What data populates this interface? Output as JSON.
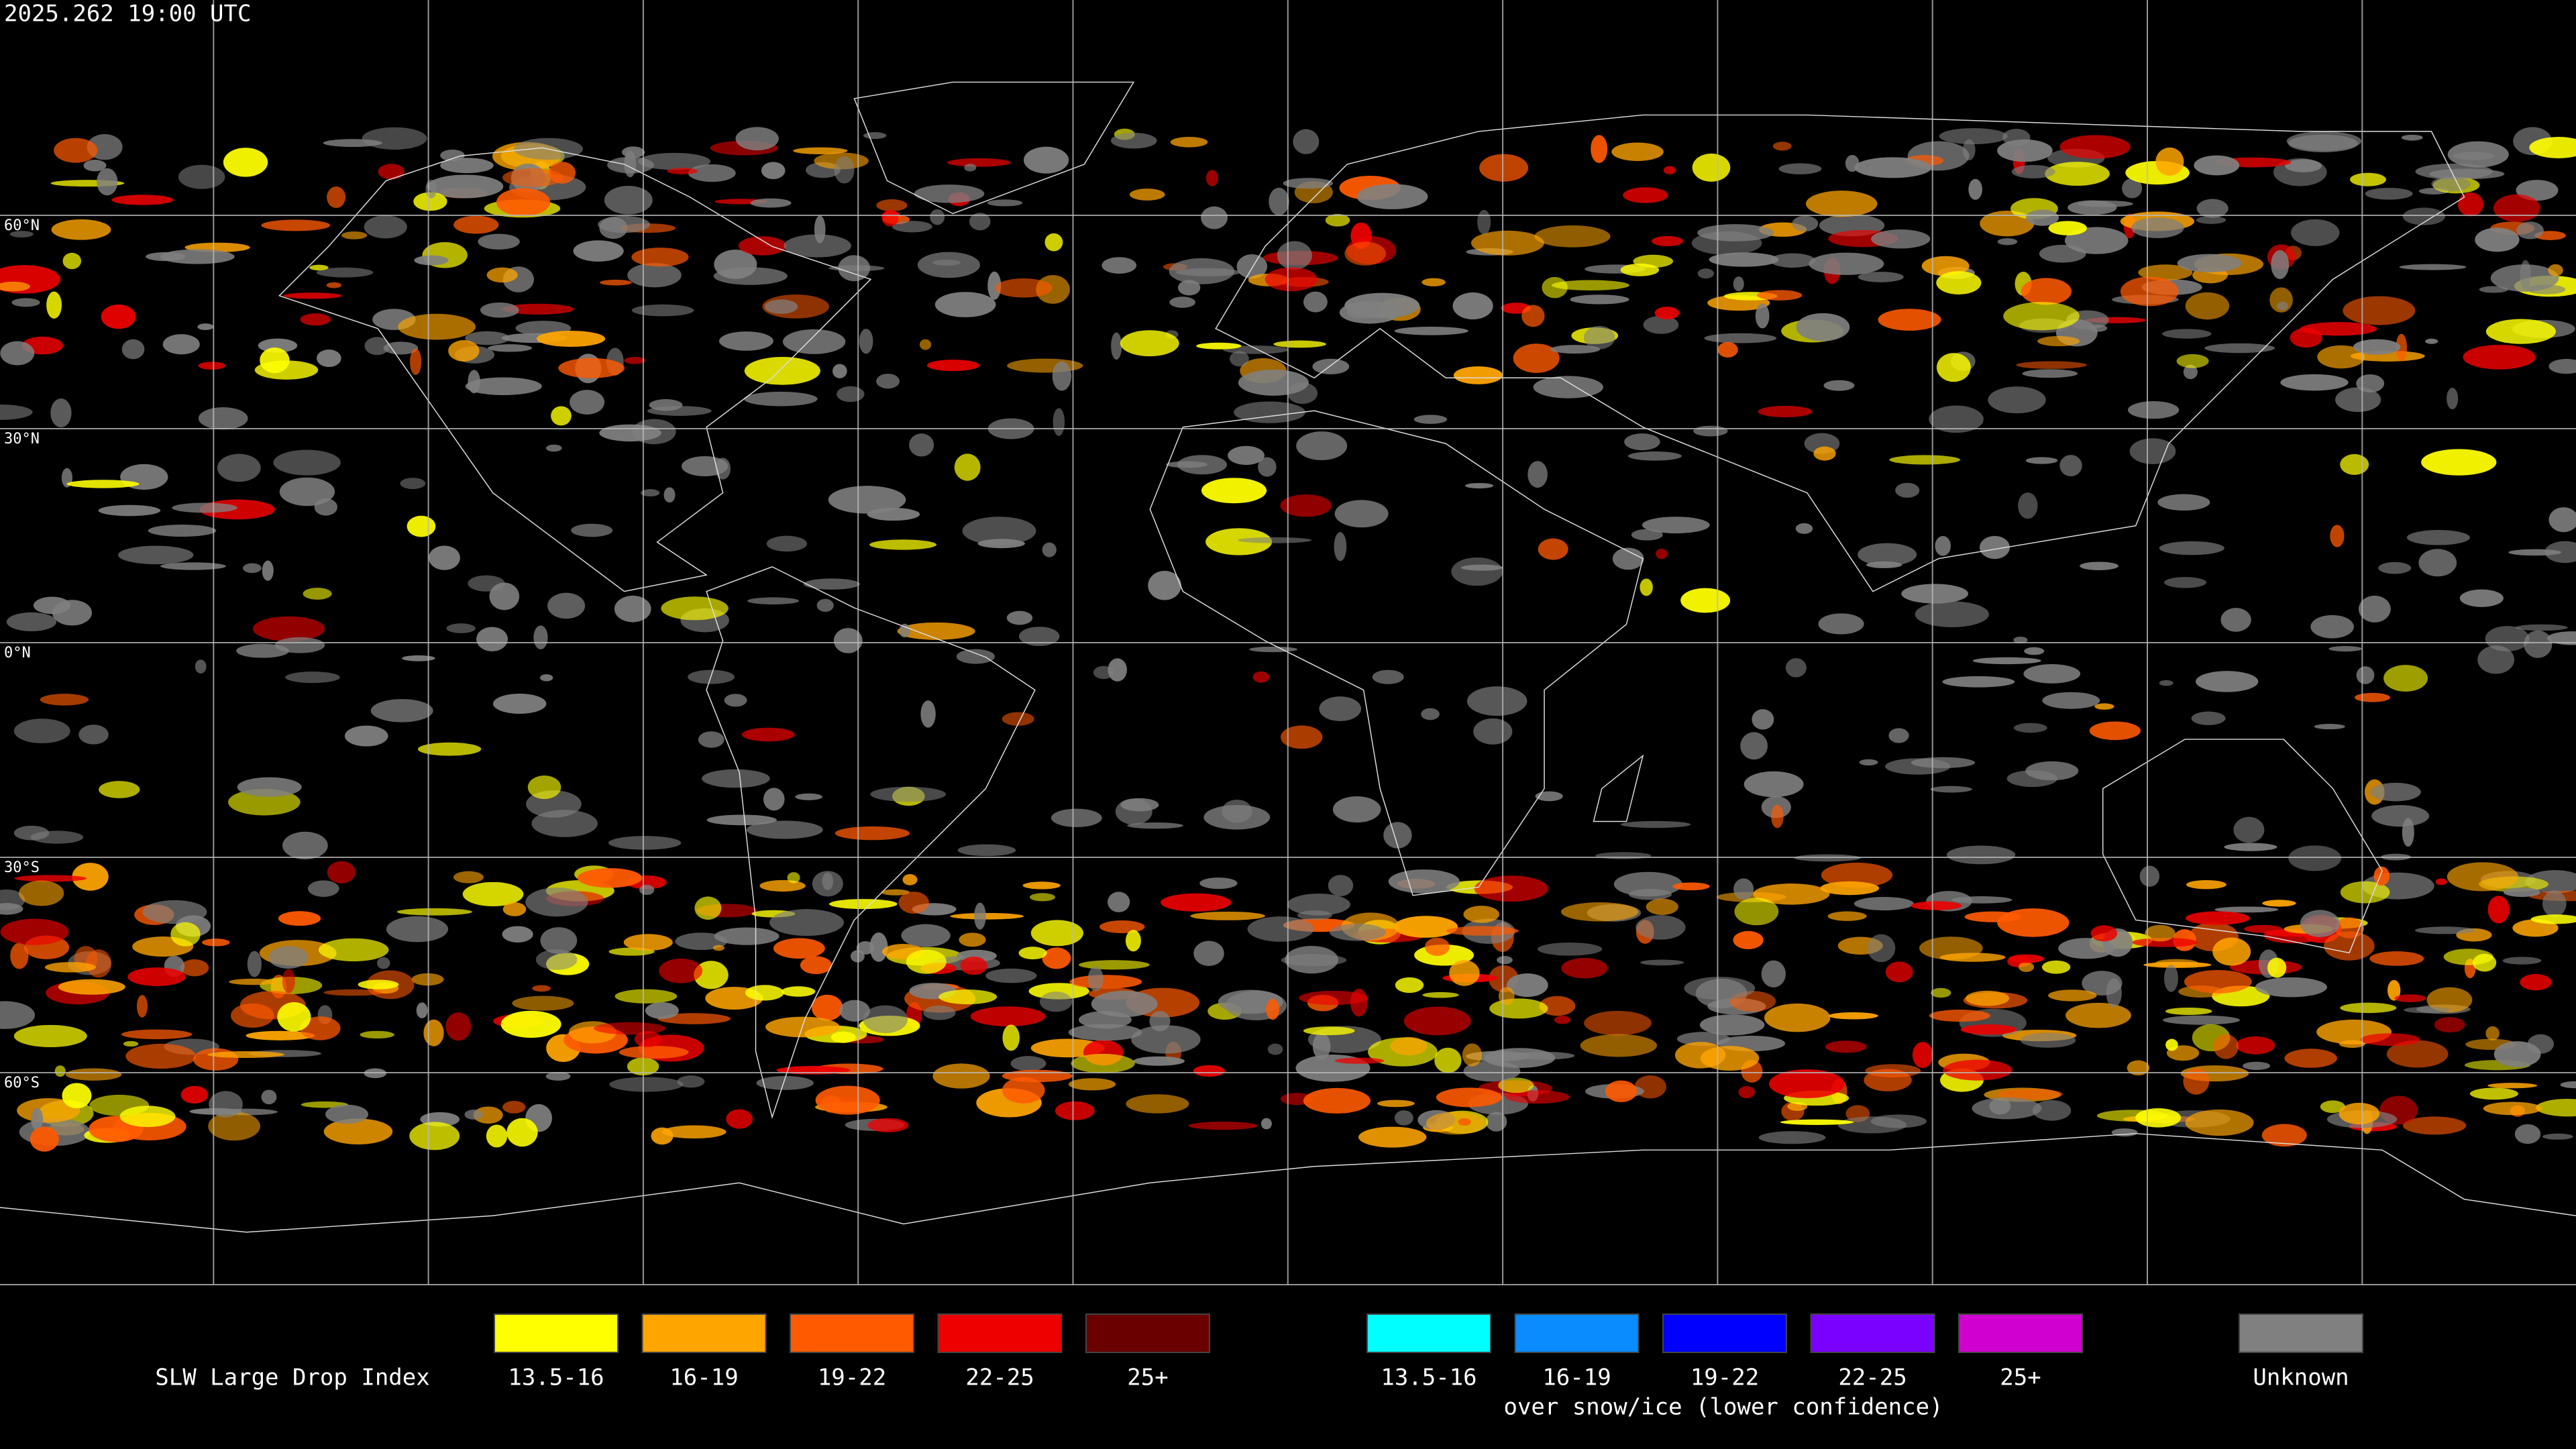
{
  "header": {
    "timestamp": "2025.262 19:00 UTC"
  },
  "map": {
    "latitude_labels": [
      "60°N",
      "30°N",
      "0°N",
      "30°S",
      "60°S"
    ]
  },
  "legend": {
    "title": "SLW Large Drop Index",
    "liquid": [
      {
        "label": "13.5-16",
        "color": "#ffff00"
      },
      {
        "label": "16-19",
        "color": "#ffa500"
      },
      {
        "label": "19-22",
        "color": "#ff5a00"
      },
      {
        "label": "22-25",
        "color": "#ee0000"
      },
      {
        "label": "25+",
        "color": "#6a0000"
      }
    ],
    "snow_ice": [
      {
        "label": "13.5-16",
        "color": "#00ffff"
      },
      {
        "label": "16-19",
        "color": "#0a8cff"
      },
      {
        "label": "19-22",
        "color": "#0000ff"
      },
      {
        "label": "22-25",
        "color": "#7a00ff"
      },
      {
        "label": "25+",
        "color": "#d000d0"
      }
    ],
    "snow_ice_note": "over snow/ice (lower confidence)",
    "unknown": {
      "label": "Unknown",
      "color": "#808080"
    }
  }
}
